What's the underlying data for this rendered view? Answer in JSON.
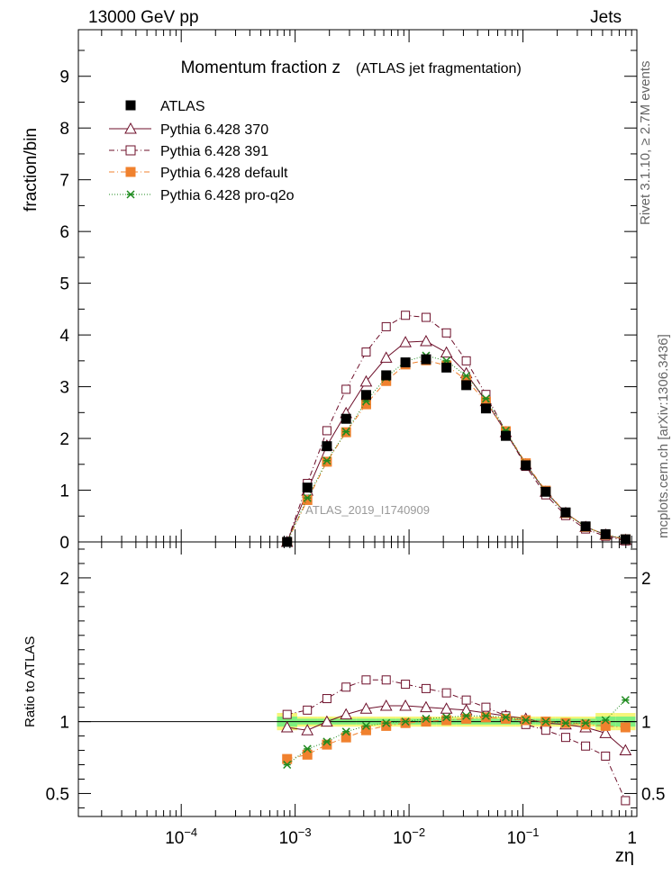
{
  "header": {
    "left": "13000 GeV pp",
    "right": "Jets"
  },
  "side_labels": {
    "rivet": "Rivet 3.1.10, ≥ 2.7M events",
    "mcplots": "mcplots.cern.ch [arXiv:1306.3436]"
  },
  "watermark": "ATLAS_2019_I1740909",
  "chart_data": {
    "type": "scatter",
    "title": "Momentum fraction z",
    "subtitle": "(ATLAS jet fragmentation)",
    "xlabel": "zη",
    "ylabel": "fraction/bin",
    "ratio_ylabel": "Ratio to ATLAS",
    "x_scale": "log",
    "xlim": [
      1.25e-05,
      1.0
    ],
    "ylim": [
      0,
      9.9
    ],
    "ratio_ylim": [
      0.34,
      2.25
    ],
    "x_ticks": [
      {
        "value": 0.0001,
        "base": "10",
        "exp": "−4"
      },
      {
        "value": 0.001,
        "base": "10",
        "exp": "−3"
      },
      {
        "value": 0.01,
        "base": "10",
        "exp": "−2"
      },
      {
        "value": 0.1,
        "base": "10",
        "exp": "−1"
      },
      {
        "value": 1,
        "base": "1",
        "exp": ""
      }
    ],
    "y_ticks": [
      "0",
      "1",
      "2",
      "3",
      "4",
      "5",
      "6",
      "7",
      "8",
      "9"
    ],
    "ratio_ticks": [
      "0.5",
      "1",
      "2"
    ],
    "legend_position": "top-left",
    "x": [
      0.00085,
      0.00128,
      0.0019,
      0.0028,
      0.0042,
      0.0063,
      0.0093,
      0.0141,
      0.0213,
      0.0318,
      0.0473,
      0.0707,
      0.1059,
      0.1585,
      0.2371,
      0.3548,
      0.5309,
      0.7943
    ],
    "series": [
      {
        "name": "ATLAS",
        "marker": "filled-square",
        "color": "#000000",
        "values": [
          0.0,
          1.05,
          1.85,
          2.38,
          2.84,
          3.22,
          3.47,
          3.53,
          3.37,
          3.03,
          2.58,
          2.05,
          1.48,
          0.97,
          0.57,
          0.3,
          0.15,
          0.05
        ],
        "ratio": [
          1.0,
          1.0,
          1.0,
          1.0,
          1.0,
          1.0,
          1.0,
          1.0,
          1.0,
          1.0,
          1.0,
          1.0,
          1.0,
          1.0,
          1.0,
          1.0,
          1.0,
          1.0
        ]
      },
      {
        "name": "Pythia 6.428 370",
        "marker": "open-triangle",
        "color": "#6d0f2a",
        "line": "solid",
        "values": [
          0.0,
          0.99,
          1.86,
          2.49,
          3.1,
          3.56,
          3.86,
          3.88,
          3.66,
          3.26,
          2.72,
          2.12,
          1.5,
          0.97,
          0.56,
          0.29,
          0.14,
          0.04
        ],
        "ratio": [
          0.96,
          0.94,
          1.0,
          1.05,
          1.09,
          1.11,
          1.11,
          1.1,
          1.09,
          1.08,
          1.06,
          1.04,
          1.02,
          0.99,
          0.98,
          0.96,
          0.92,
          0.8
        ]
      },
      {
        "name": "Pythia 6.428 391",
        "marker": "open-square",
        "color": "#6d0f2a",
        "line": "dashdot",
        "values": [
          0.0,
          1.13,
          2.15,
          2.95,
          3.67,
          4.16,
          4.38,
          4.34,
          4.04,
          3.5,
          2.85,
          2.13,
          1.46,
          0.91,
          0.51,
          0.25,
          0.11,
          0.02
        ],
        "ratio": [
          1.05,
          1.08,
          1.16,
          1.24,
          1.29,
          1.29,
          1.26,
          1.23,
          1.2,
          1.15,
          1.1,
          1.04,
          0.98,
          0.94,
          0.89,
          0.83,
          0.76,
          0.45
        ]
      },
      {
        "name": "Pythia 6.428 default",
        "marker": "filled-square",
        "color": "#f0812e",
        "line": "dashdot",
        "values": [
          0.0,
          0.81,
          1.55,
          2.12,
          2.66,
          3.11,
          3.43,
          3.51,
          3.41,
          3.13,
          2.71,
          2.14,
          1.52,
          0.99,
          0.56,
          0.29,
          0.14,
          0.05
        ],
        "ratio": [
          0.74,
          0.77,
          0.84,
          0.89,
          0.94,
          0.97,
          0.99,
          1.0,
          1.01,
          1.02,
          1.03,
          1.02,
          1.01,
          1.0,
          0.99,
          0.98,
          0.97,
          0.96
        ]
      },
      {
        "name": "Pythia 6.428 pro-q2o",
        "marker": "star",
        "color": "#1f8b1f",
        "line": "dotted",
        "values": [
          0.0,
          0.85,
          1.57,
          2.13,
          2.72,
          3.18,
          3.49,
          3.6,
          3.5,
          3.21,
          2.77,
          2.15,
          1.5,
          0.97,
          0.55,
          0.29,
          0.14,
          0.06
        ],
        "ratio": [
          0.7,
          0.81,
          0.86,
          0.93,
          0.97,
          0.99,
          1.0,
          1.02,
          1.03,
          1.04,
          1.04,
          1.03,
          1.01,
          1.0,
          0.99,
          0.99,
          1.01,
          1.15
        ]
      }
    ]
  },
  "colors": {
    "band_green": "#7ff07f",
    "band_yellow": "#f5f57a"
  }
}
